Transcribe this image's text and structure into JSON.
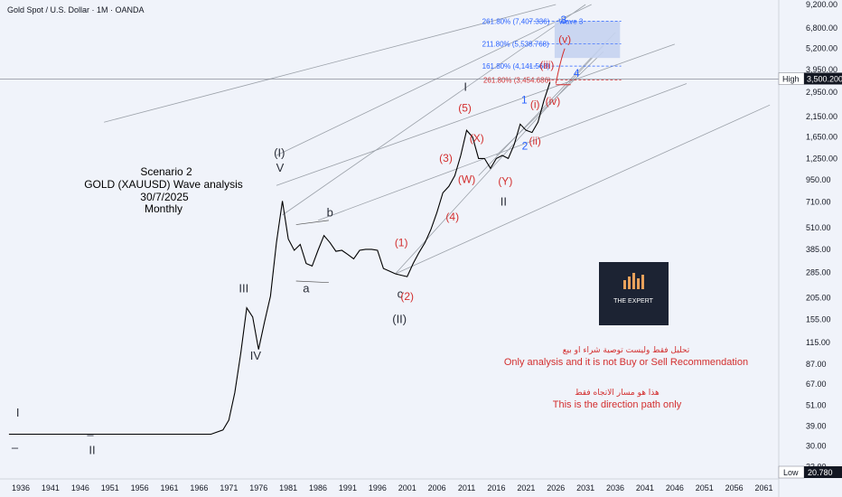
{
  "header": {
    "title": "Gold Spot / U.S. Dollar · 1M · OANDA"
  },
  "scenario": {
    "lines": [
      "Scenario 2",
      "GOLD (XAUUSD) Wave analysis",
      "30/7/2025",
      "Monthly"
    ]
  },
  "notes": {
    "arabic_1": "تحليل فقط وليست توصية شراء او بيع",
    "english_1": "Only analysis and it is not Buy or Sell Recommendation",
    "arabic_2": "هذا هو مسار الاتجاه فقط",
    "english_2": "This is the direction path only"
  },
  "logo": {
    "text": "THE EXPERT"
  },
  "colors": {
    "bullish": "#000000",
    "wave_red": "#d32f2f",
    "wave_blue": "#2962ff",
    "fib_zone": "#c5d3f0",
    "background": "#f0f3fa"
  },
  "chart_data": {
    "type": "line",
    "instrument": "Gold Spot / U.S. Dollar",
    "timeframe": "1M",
    "source": "OANDA",
    "scale": "log",
    "ylim": [
      20.78,
      9200
    ],
    "x_ticks": [
      "1936",
      "1941",
      "1946",
      "1951",
      "1956",
      "1961",
      "1966",
      "1971",
      "1976",
      "1981",
      "1986",
      "1991",
      "1996",
      "2001",
      "2006",
      "2011",
      "2016",
      "2021",
      "2026",
      "2031",
      "2036",
      "2041",
      "2046",
      "2051",
      "2056",
      "2061"
    ],
    "y_ticks": [
      "9,200.00",
      "6,800.00",
      "5,200.00",
      "3,950.00",
      "2,950.00",
      "2,150.00",
      "1,650.00",
      "1,250.00",
      "950.00",
      "710.00",
      "510.00",
      "385.00",
      "285.00",
      "205.00",
      "155.00",
      "115.00",
      "87.00",
      "67.00",
      "51.00",
      "39.00",
      "30.00",
      "23.00"
    ],
    "high_label": "High",
    "high_value": "3,500.200",
    "low_label": "Low",
    "low_value": "20.780",
    "series": [
      {
        "values": [
          [
            1934,
            35
          ],
          [
            1968,
            35
          ],
          [
            1970,
            37
          ],
          [
            1971,
            42
          ],
          [
            1972,
            60
          ],
          [
            1973,
            100
          ],
          [
            1974,
            180
          ],
          [
            1975,
            160
          ],
          [
            1976,
            105
          ],
          [
            1977,
            150
          ],
          [
            1978,
            210
          ],
          [
            1979,
            420
          ],
          [
            1980,
            720
          ],
          [
            1981,
            440
          ],
          [
            1982,
            380
          ],
          [
            1983,
            410
          ],
          [
            1984,
            320
          ],
          [
            1985,
            310
          ],
          [
            1986,
            380
          ],
          [
            1987,
            460
          ],
          [
            1988,
            420
          ],
          [
            1989,
            375
          ],
          [
            1990,
            380
          ],
          [
            1991,
            360
          ],
          [
            1992,
            340
          ],
          [
            1993,
            380
          ],
          [
            1994,
            385
          ],
          [
            1995,
            385
          ],
          [
            1996,
            380
          ],
          [
            1997,
            300
          ],
          [
            1998,
            290
          ],
          [
            1999,
            280
          ],
          [
            2000,
            275
          ],
          [
            2001,
            270
          ],
          [
            2002,
            320
          ],
          [
            2003,
            370
          ],
          [
            2004,
            420
          ],
          [
            2005,
            500
          ],
          [
            2006,
            620
          ],
          [
            2007,
            800
          ],
          [
            2008,
            870
          ],
          [
            2009,
            1000
          ],
          [
            2010,
            1300
          ],
          [
            2011,
            1800
          ],
          [
            2012,
            1650
          ],
          [
            2013,
            1250
          ],
          [
            2014,
            1250
          ],
          [
            2015,
            1100
          ],
          [
            2016,
            1250
          ],
          [
            2017,
            1300
          ],
          [
            2018,
            1250
          ],
          [
            2019,
            1500
          ],
          [
            2020,
            1950
          ],
          [
            2021,
            1800
          ],
          [
            2022,
            1750
          ],
          [
            2023,
            2000
          ],
          [
            2024,
            2650
          ],
          [
            2025,
            3350
          ]
        ]
      }
    ],
    "fib_levels": [
      {
        "label": "261.80% (7,407.336)",
        "value": 7407.336,
        "note": "Wave 3"
      },
      {
        "label": "211.80% (5,538.768)",
        "value": 5538.768
      },
      {
        "label": "161.80% (4,141.563)",
        "value": 4141.563
      },
      {
        "label": "261.80% (3,454.686)",
        "value": 3454.686
      }
    ],
    "wave_labels": [
      {
        "text": "I",
        "color": "black",
        "x": 1935.5,
        "y": 44
      },
      {
        "text": "–",
        "color": "black",
        "x": 1935.0,
        "y": 28
      },
      {
        "text": "–",
        "color": "black",
        "x": 1947.7,
        "y": 33
      },
      {
        "text": "II",
        "color": "black",
        "x": 1948.0,
        "y": 27
      },
      {
        "text": "III",
        "color": "black",
        "x": 1973.5,
        "y": 220
      },
      {
        "text": "IV",
        "color": "black",
        "x": 1975.5,
        "y": 92
      },
      {
        "text": "(I)",
        "color": "black",
        "x": 1979.5,
        "y": 1280
      },
      {
        "text": "V",
        "color": "black",
        "x": 1979.6,
        "y": 1050
      },
      {
        "text": "a",
        "color": "black",
        "x": 1984.0,
        "y": 220
      },
      {
        "text": "b",
        "color": "black",
        "x": 1988.0,
        "y": 590
      },
      {
        "text": "c",
        "color": "black",
        "x": 1999.8,
        "y": 205
      },
      {
        "text": "(II)",
        "color": "black",
        "x": 1999.7,
        "y": 148
      },
      {
        "text": "(1)",
        "color": "red",
        "x": 2000.0,
        "y": 400
      },
      {
        "text": "(2)",
        "color": "red",
        "x": 2001.0,
        "y": 200
      },
      {
        "text": "(3)",
        "color": "red",
        "x": 2007.5,
        "y": 1200
      },
      {
        "text": "(4)",
        "color": "red",
        "x": 2008.6,
        "y": 560
      },
      {
        "text": "(5)",
        "color": "red",
        "x": 2010.7,
        "y": 2300
      },
      {
        "text": "I",
        "color": "black",
        "x": 2010.8,
        "y": 3000
      },
      {
        "text": "(X)",
        "color": "red",
        "x": 2012.7,
        "y": 1550
      },
      {
        "text": "(W)",
        "color": "red",
        "x": 2011.0,
        "y": 910
      },
      {
        "text": "(Y)",
        "color": "red",
        "x": 2017.5,
        "y": 890
      },
      {
        "text": "II",
        "color": "black",
        "x": 2017.2,
        "y": 680
      },
      {
        "text": "1",
        "color": "blue",
        "x": 2020.7,
        "y": 2550
      },
      {
        "text": "(i)",
        "color": "red",
        "x": 2022.5,
        "y": 2400
      },
      {
        "text": "(ii)",
        "color": "red",
        "x": 2022.5,
        "y": 1500
      },
      {
        "text": "2",
        "color": "blue",
        "x": 2020.8,
        "y": 1400
      },
      {
        "text": "(iii)",
        "color": "red",
        "x": 2024.5,
        "y": 4000
      },
      {
        "text": "(iv)",
        "color": "red",
        "x": 2025.5,
        "y": 2500
      },
      {
        "text": "(v)",
        "color": "red",
        "x": 2027.5,
        "y": 5600
      },
      {
        "text": "3",
        "color": "blue",
        "x": 2027.3,
        "y": 7200
      },
      {
        "text": "4",
        "color": "blue",
        "x": 2029.5,
        "y": 3600
      }
    ]
  }
}
